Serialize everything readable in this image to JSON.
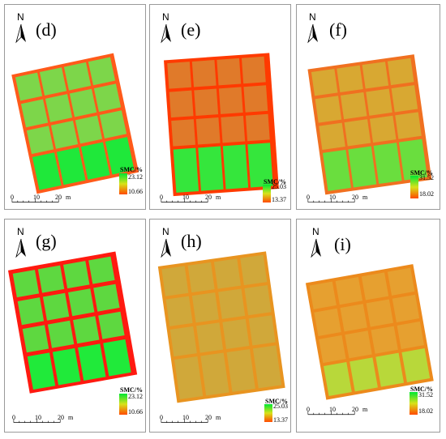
{
  "north_label": "N",
  "legend_title": "SMC/%",
  "scalebar": {
    "t0": "0",
    "t1": "10",
    "t2": "20",
    "unit": "m"
  },
  "colors": {
    "high": "#00e632",
    "mid": "#d8c21a",
    "low": "#ff4a00"
  },
  "panels": [
    {
      "id": "d",
      "label": "(d)",
      "smc_max": "23.12",
      "smc_min": "10.66"
    },
    {
      "id": "e",
      "label": "(e)",
      "smc_max": "25.03",
      "smc_min": "13.37"
    },
    {
      "id": "f",
      "label": "(f)",
      "smc_max": "31.52",
      "smc_min": "18.02"
    },
    {
      "id": "g",
      "label": "(g)",
      "smc_max": "23.12",
      "smc_min": "10.66"
    },
    {
      "id": "h",
      "label": "(h)",
      "smc_max": "25.03",
      "smc_min": "13.37"
    },
    {
      "id": "i",
      "label": "(i)",
      "smc_max": "31.52",
      "smc_min": "18.02"
    }
  ]
}
